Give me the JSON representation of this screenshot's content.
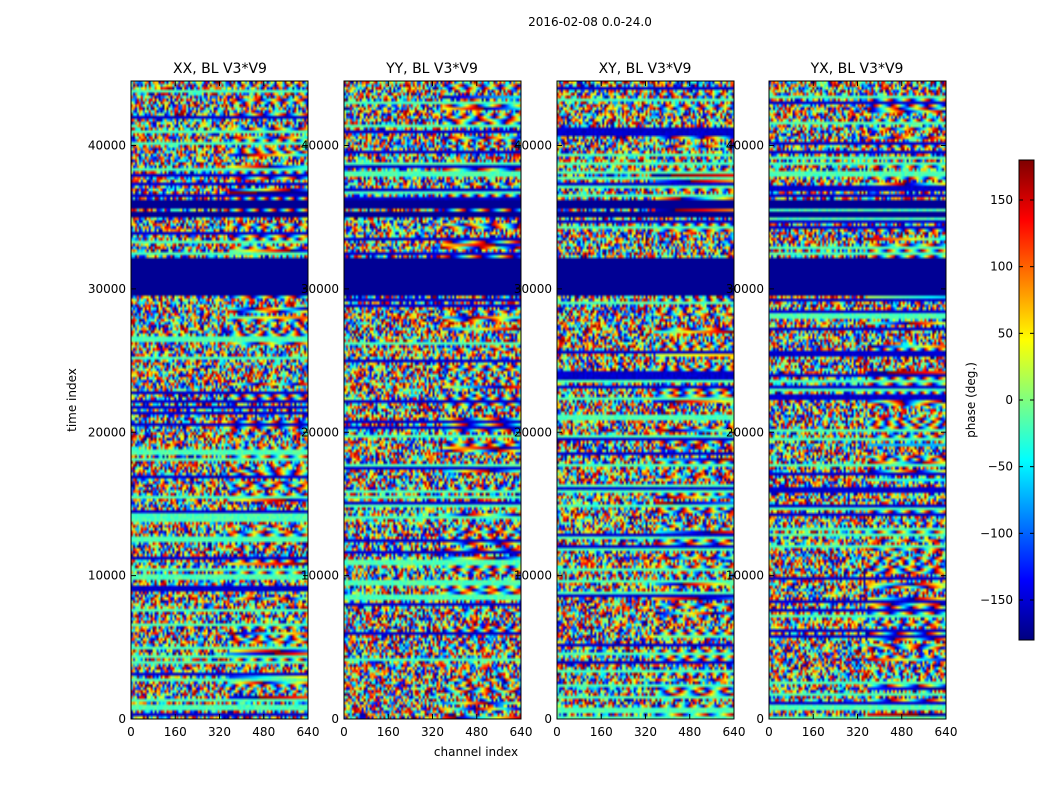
{
  "chart_data": {
    "type": "heatmap",
    "suptitle": "2016-02-08 0.0-24.0",
    "xlabel": "channel index",
    "ylabel": "time index",
    "xlim": [
      0,
      640
    ],
    "ylim": [
      0,
      44500
    ],
    "x_ticks": [
      0,
      160,
      320,
      480,
      640
    ],
    "y_ticks": [
      0,
      10000,
      20000,
      30000,
      40000
    ],
    "panels": [
      {
        "title": "XX, BL V3*V9",
        "show_ylabel": true
      },
      {
        "title": "YY, BL V3*V9",
        "show_ylabel": false
      },
      {
        "title": "XY, BL V3*V9",
        "show_ylabel": false
      },
      {
        "title": "YX, BL V3*V9",
        "show_ylabel": false
      }
    ],
    "colorbar": {
      "label": "phase (deg.)",
      "range": [
        -180,
        180
      ],
      "ticks": [
        -150,
        -100,
        -50,
        0,
        50,
        100,
        150
      ],
      "colormap": "jet"
    },
    "flagged_time_ranges": [
      [
        29500,
        32200
      ],
      [
        34900,
        35300
      ],
      [
        35500,
        36200
      ]
    ]
  }
}
